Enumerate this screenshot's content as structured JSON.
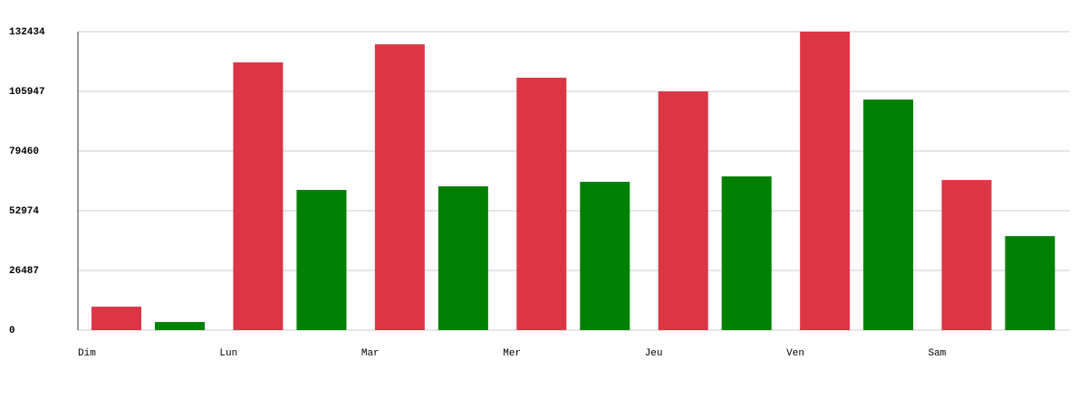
{
  "chart_data": {
    "type": "bar",
    "categories": [
      "Dim",
      "Lun",
      "Mar",
      "Mer",
      "Jeu",
      "Ven",
      "Sam"
    ],
    "series": [
      {
        "color": "#dc3545",
        "values": [
          10400,
          118800,
          126800,
          112000,
          105900,
          132434,
          66600
        ]
      },
      {
        "color": "#008000",
        "values": [
          3600,
          62200,
          63800,
          65800,
          68200,
          102300,
          41700
        ]
      }
    ],
    "ylim": [
      0,
      132434
    ],
    "yticks": [
      0,
      26487,
      52974,
      79460,
      105947,
      132434
    ],
    "grid": true
  }
}
